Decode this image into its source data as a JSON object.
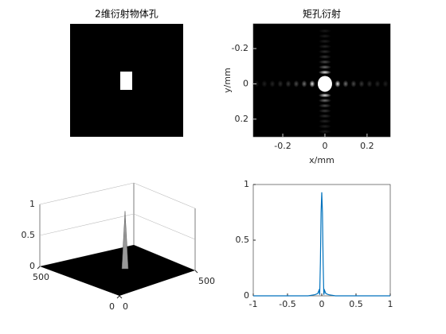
{
  "chart_data": [
    {
      "type": "image",
      "title": "2维衍射物体孔"
    },
    {
      "type": "image",
      "title": "矩孔衍射",
      "xlabel": "x/mm",
      "ylabel": "y/mm",
      "xlim": [
        -0.34,
        0.31
      ],
      "xticks": [
        -0.2,
        0,
        0.2
      ],
      "ylim": [
        -0.34,
        0.3
      ],
      "yticks": [
        -0.2,
        0,
        0.2
      ],
      "y_reversed": true
    },
    {
      "type": "surface",
      "xlim": [
        0,
        500
      ],
      "xticks": [
        0,
        500
      ],
      "ylim": [
        0,
        500
      ],
      "yticks": [
        0,
        500
      ],
      "zlim": [
        0,
        1
      ],
      "zticks": [
        0,
        0.5,
        1
      ],
      "peak": 0.93
    },
    {
      "type": "line",
      "color": "#0072bd",
      "x": [
        -1,
        -0.2,
        -0.1,
        -0.06,
        -0.04,
        -0.03,
        -0.02,
        -0.01,
        0,
        0.01,
        0.02,
        0.03,
        0.04,
        0.06,
        0.1,
        0.2,
        1
      ],
      "values": [
        0,
        0,
        0.01,
        0.02,
        0.05,
        0.01,
        0.3,
        0.75,
        0.93,
        0.75,
        0.3,
        0.01,
        0.05,
        0.02,
        0.01,
        0,
        0
      ],
      "xlim": [
        -1,
        1
      ],
      "xticks": [
        -1,
        -0.5,
        0,
        0.5,
        1
      ],
      "ylim": [
        0,
        1
      ],
      "yticks": [
        0,
        0.5,
        1
      ]
    }
  ]
}
